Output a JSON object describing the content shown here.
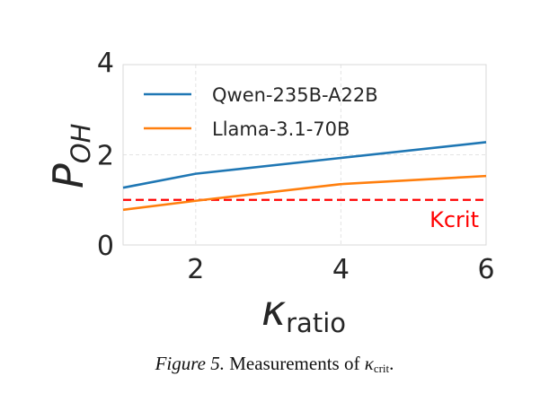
{
  "chart_data": {
    "type": "line",
    "xlabel_main": "κ",
    "xlabel_sub": "ratio",
    "ylabel_main": "P",
    "ylabel_sub": "OH",
    "xlim": [
      1,
      6
    ],
    "ylim": [
      0,
      4
    ],
    "xticks": [
      2,
      4,
      6
    ],
    "yticks": [
      0,
      2,
      4
    ],
    "grid": true,
    "legend_position": "upper-left",
    "series": [
      {
        "name": "Qwen-235B-A22B",
        "color": "#1f77b4",
        "x": [
          1,
          2,
          4,
          6
        ],
        "y": [
          1.27,
          1.58,
          1.93,
          2.28
        ]
      },
      {
        "name": "Llama-3.1-70B",
        "color": "#ff7f0e",
        "x": [
          1,
          2,
          4,
          6
        ],
        "y": [
          0.78,
          0.98,
          1.35,
          1.53
        ]
      }
    ],
    "reference_line": {
      "label": "Kcrit",
      "y": 1.0,
      "color": "#ff0000",
      "style": "dashed"
    }
  },
  "caption": {
    "figure_label": "Figure 5.",
    "text": "Measurements of",
    "symbol": "κ",
    "symbol_sub": "crit",
    "end": "."
  }
}
